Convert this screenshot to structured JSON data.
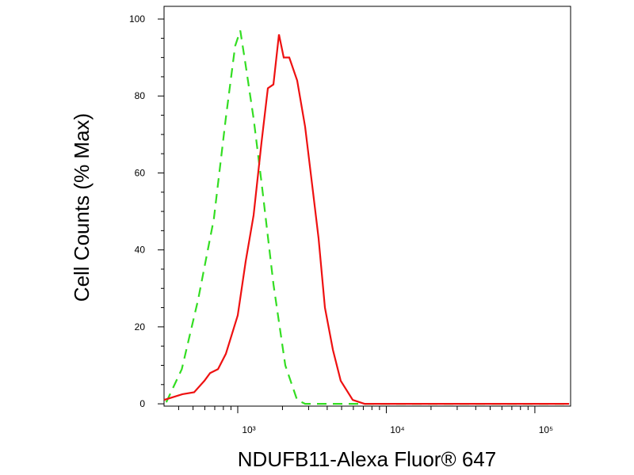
{
  "chart_data": {
    "type": "line",
    "x_label": "NDUFB11-Alexa Fluor® 647",
    "y_label": "Cell Counts (% Max)",
    "x_scale": "log",
    "xlim": [
      319,
      174000
    ],
    "ylim": [
      -0.6,
      103.3
    ],
    "xticks": [
      {
        "value": 1000,
        "label": "10³"
      },
      {
        "value": 10000,
        "label": "10⁴"
      },
      {
        "value": 100000,
        "label": "10⁵"
      }
    ],
    "xminorticks": [
      400,
      500,
      600,
      700,
      800,
      900,
      2000,
      3000,
      4000,
      5000,
      6000,
      7000,
      8000,
      9000,
      20000,
      30000,
      40000,
      50000,
      60000,
      70000,
      80000,
      90000
    ],
    "yticks": [
      0,
      20,
      40,
      60,
      80,
      100
    ],
    "yminorticks": [
      5,
      10,
      15,
      25,
      30,
      35,
      45,
      50,
      55,
      65,
      70,
      75,
      85,
      90,
      95
    ],
    "series": [
      {
        "color": "#33dd22",
        "dash": true,
        "x": [
          330,
          420,
          540,
          690,
          830,
          960,
          1040,
          1130,
          1280,
          1450,
          1740,
          2090,
          2510,
          2840,
          170000
        ],
        "values": [
          0.4,
          9,
          27,
          48,
          74,
          93,
          97,
          88,
          74,
          57,
          31,
          10,
          1,
          0,
          0
        ]
      },
      {
        "color": "#ee1111",
        "dash": false,
        "x": [
          319,
          424,
          509,
          597,
          651,
          736,
          832,
          1000,
          1131,
          1278,
          1445,
          1594,
          1738,
          1894,
          2038,
          2222,
          2512,
          2840,
          3210,
          3500,
          3860,
          4370,
          4930,
          5940,
          7140,
          170000
        ],
        "values": [
          1,
          2.5,
          3,
          6,
          8,
          9,
          13,
          23,
          37,
          49,
          68,
          82,
          83,
          96,
          90,
          90,
          84,
          72,
          55,
          43,
          25,
          14,
          6,
          1,
          0,
          0
        ]
      }
    ]
  }
}
